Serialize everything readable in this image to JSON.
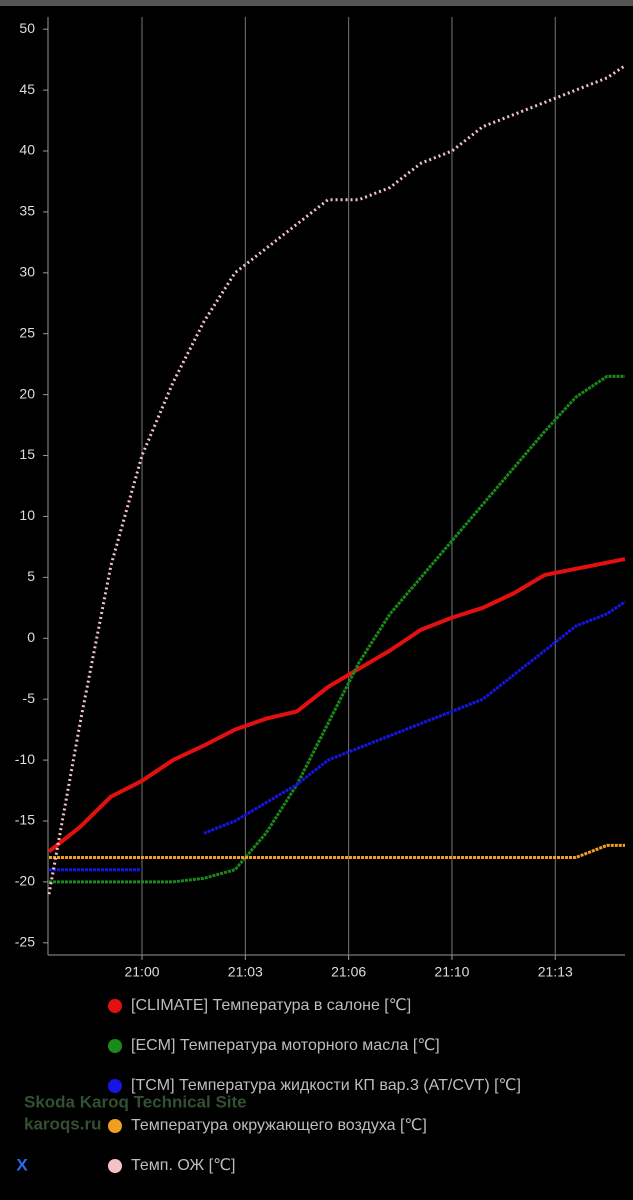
{
  "chart_data": {
    "type": "line",
    "x": [
      "20:57:00",
      "20:58:00",
      "20:59:00",
      "21:00:00",
      "21:01:00",
      "21:02:00",
      "21:03:00",
      "21:04:00",
      "21:05:00",
      "21:06:00",
      "21:07:00",
      "21:08:00",
      "21:09:00",
      "21:10:00",
      "21:11:00",
      "21:12:00",
      "21:13:00",
      "21:14:00",
      "21:15:00",
      "21:15:35"
    ],
    "xlim": [
      "20:56:58",
      "21:15:35"
    ],
    "xticks": [
      {
        "value": "21:00:00",
        "label": "21:00"
      },
      {
        "value": "21:03:20",
        "label": "21:03"
      },
      {
        "value": "21:06:40",
        "label": "21:06"
      },
      {
        "value": "21:10:00",
        "label": "21:10"
      },
      {
        "value": "21:13:20",
        "label": "21:13"
      }
    ],
    "ylim": [
      -26,
      51
    ],
    "yticks": [
      -25,
      -20,
      -15,
      -10,
      -5,
      0,
      5,
      10,
      15,
      20,
      25,
      30,
      35,
      40,
      45,
      50
    ],
    "grid": "x",
    "series": [
      {
        "name": "[CLIMATE] Температура в салоне [℃]",
        "color": "#e31010",
        "values": [
          -17.5,
          -15.5,
          -13,
          -11.7,
          -10,
          -8.8,
          -7.5,
          -6.6,
          -6,
          -4,
          -2.5,
          -1,
          0.7,
          1.7,
          2.5,
          3.7,
          5.2,
          5.7,
          6.2,
          6.5
        ]
      },
      {
        "name": "[ECM] Температура моторного масла [℃]",
        "color": "#1a8a1a",
        "values": [
          -20,
          -20,
          -20,
          -20,
          -20,
          -19.7,
          -19,
          -16,
          -12,
          -7,
          -2,
          2,
          5,
          8,
          11,
          14,
          17,
          19.8,
          21.5,
          21.5
        ]
      },
      {
        "name": "[TCM] Температура жидкости КП вар.3 (AT/CVT) [℃]",
        "color": "#1515e6",
        "values": [
          -19,
          -19,
          -19,
          -19,
          null,
          -16,
          -15,
          -13.5,
          -12,
          -10,
          -9,
          -8,
          -7,
          -6,
          -5,
          -3,
          -1,
          1,
          2,
          3
        ]
      },
      {
        "name": "Температура окружающего воздуха [℃]",
        "color": "#f0a020",
        "values": [
          -18,
          -18,
          -18,
          -18,
          -18,
          -18,
          -18,
          -18,
          -18,
          -18,
          -18,
          -18,
          -18,
          -18,
          -18,
          -18,
          -18,
          -18,
          -17,
          -17
        ]
      },
      {
        "name": "Темп. ОЖ [℃]",
        "color": "#f4c2c6",
        "values": [
          -21,
          -7,
          6,
          15,
          21,
          26,
          30,
          32,
          34,
          36,
          36,
          37,
          39,
          40,
          42,
          43,
          44,
          45,
          46,
          47
        ]
      }
    ],
    "annotations": [
      "Skoda Karoq Technical Site",
      "karoqs.ru"
    ]
  },
  "close_button": "X"
}
